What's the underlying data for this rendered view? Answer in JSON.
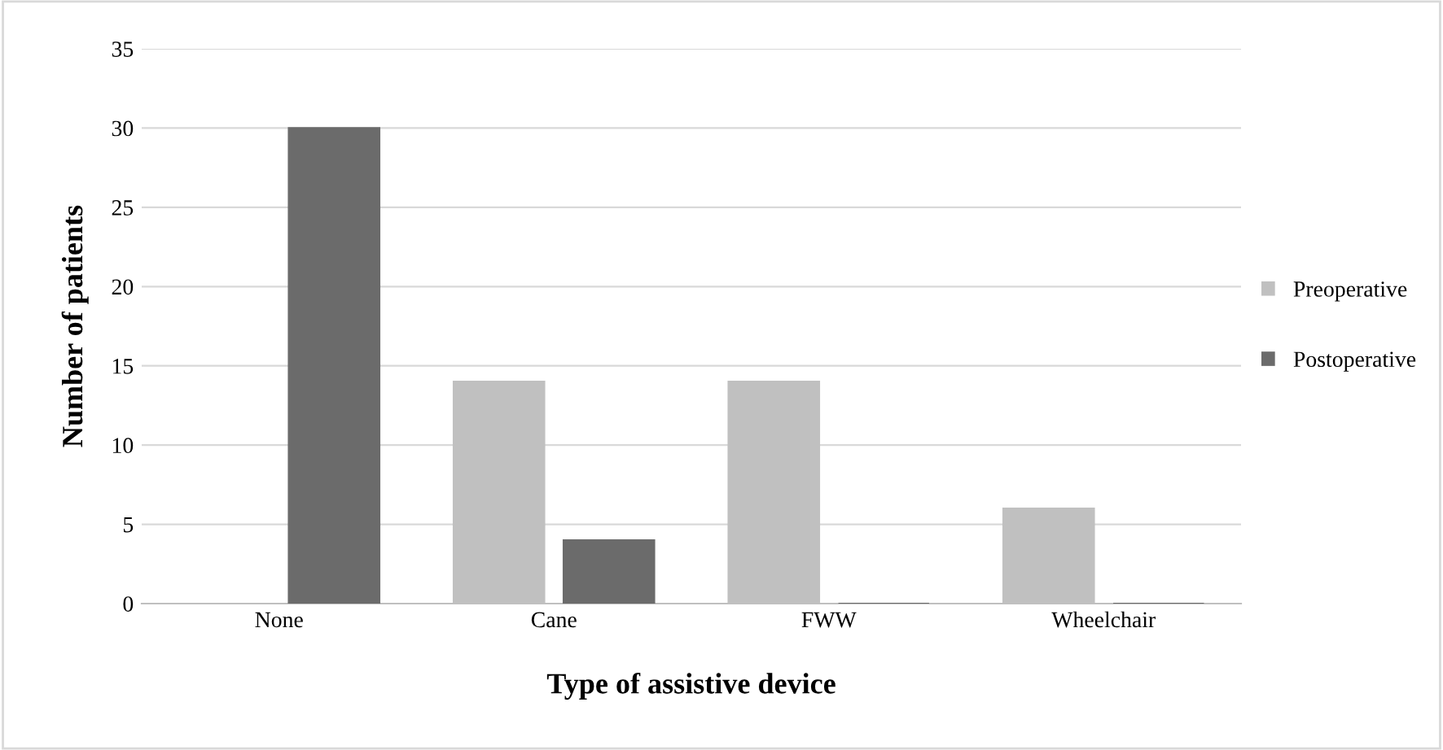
{
  "chart_data": {
    "type": "bar",
    "xlabel": "Type of assistive device",
    "ylabel": "Number of patients",
    "categories": [
      "None",
      "Cane",
      "FWW",
      "Wheelchair"
    ],
    "series": [
      {
        "name": "Preoperative",
        "color": "#c0c0c0",
        "values": [
          0,
          14,
          14,
          6
        ]
      },
      {
        "name": "Postoperative",
        "color": "#6b6b6b",
        "values": [
          30,
          4,
          0,
          0
        ]
      }
    ],
    "ylim": [
      0,
      35
    ],
    "yticks": [
      0,
      5,
      10,
      15,
      20,
      25,
      30,
      35
    ],
    "grid": "y",
    "legend": "right"
  }
}
